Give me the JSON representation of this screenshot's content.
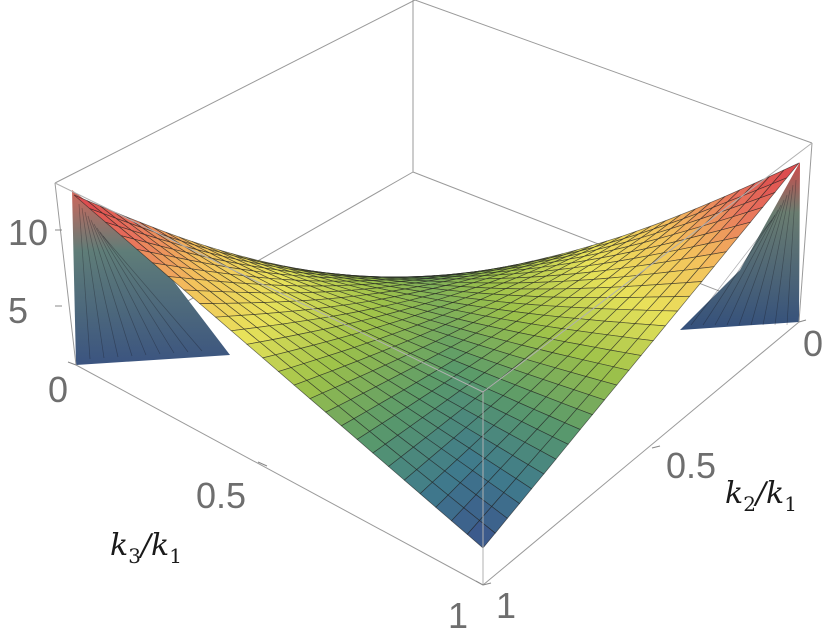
{
  "chart_data": {
    "type": "surface3d",
    "x_axis": {
      "label_main": "k",
      "label_sub": "3",
      "label_div": "/",
      "label_main2": "k",
      "label_sub2": "1",
      "ticks": [
        "0",
        "0.5",
        "1"
      ],
      "range": [
        0,
        1
      ]
    },
    "y_axis": {
      "label_main": "k",
      "label_sub": "2",
      "label_div": "/",
      "label_main2": "k",
      "label_sub2": "1",
      "ticks": [
        "0",
        "0.5",
        "1"
      ],
      "range": [
        0,
        1
      ]
    },
    "z_axis": {
      "ticks": [
        "5",
        "10"
      ],
      "range": [
        0,
        12
      ]
    },
    "surface": {
      "grid": 26,
      "x_range": [
        0,
        1
      ],
      "y_range": [
        0,
        1
      ],
      "constraint": "valid where x + y >= 1 (triangle inequality); walls drawn below",
      "corner_values": {
        "x0_y1": 12,
        "x1_y0": 12,
        "x1_y1": 1.2,
        "x0_y0_edge": 1.0
      }
    },
    "colormap": [
      "#3b4f8c",
      "#3f7a8c",
      "#5a9a6a",
      "#9ec24a",
      "#e8e25a",
      "#f4c15c",
      "#e8725c",
      "#d9404a"
    ],
    "box": true,
    "grid": false
  }
}
